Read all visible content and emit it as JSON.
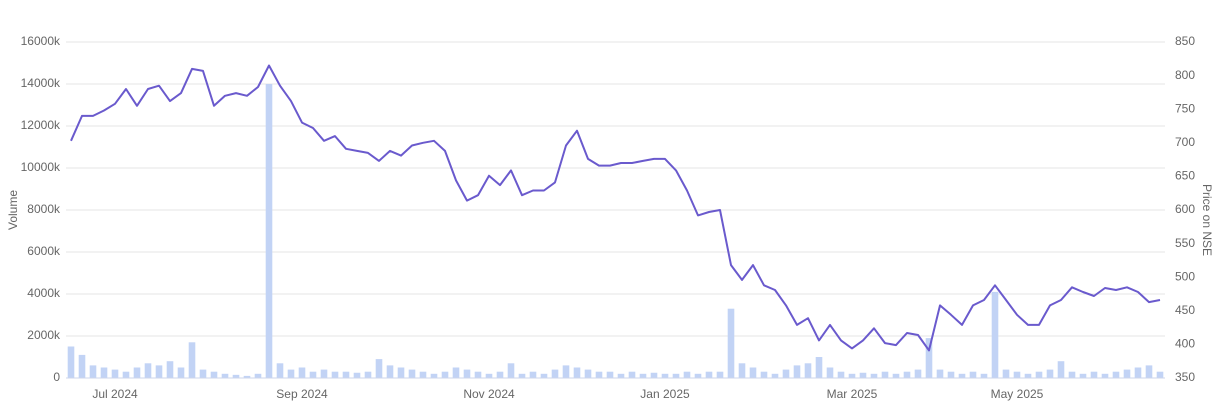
{
  "chart_data": {
    "type": "combo",
    "ylabel": "Volume",
    "y2label": "Price on NSE",
    "categories": [
      null,
      null,
      null,
      null,
      "Jul 2024",
      null,
      null,
      null,
      null,
      null,
      null,
      null,
      null,
      null,
      null,
      null,
      null,
      null,
      null,
      null,
      null,
      "Sep 2024",
      null,
      null,
      null,
      null,
      null,
      null,
      null,
      null,
      null,
      null,
      null,
      null,
      null,
      null,
      null,
      null,
      "Nov 2024",
      null,
      null,
      null,
      null,
      null,
      null,
      null,
      null,
      null,
      null,
      null,
      null,
      null,
      null,
      null,
      "Jan 2025",
      null,
      null,
      null,
      null,
      null,
      null,
      null,
      null,
      null,
      null,
      null,
      null,
      null,
      null,
      null,
      null,
      "Mar 2025",
      null,
      null,
      null,
      null,
      null,
      null,
      null,
      null,
      null,
      null,
      null,
      null,
      null,
      null,
      "May 2025",
      null,
      null,
      null,
      null,
      null,
      null,
      null,
      null,
      null,
      null,
      null,
      null,
      null
    ],
    "series": [
      {
        "type": "bar",
        "color": "#c2d3f5",
        "values": [
          1500000,
          1100000,
          600000,
          500000,
          400000,
          300000,
          500000,
          700000,
          600000,
          800000,
          500000,
          1700000,
          400000,
          300000,
          200000,
          150000,
          100000,
          200000,
          14000000,
          700000,
          400000,
          500000,
          300000,
          400000,
          300000,
          300000,
          250000,
          300000,
          900000,
          600000,
          500000,
          400000,
          300000,
          200000,
          300000,
          500000,
          400000,
          300000,
          200000,
          300000,
          700000,
          200000,
          300000,
          200000,
          400000,
          600000,
          500000,
          400000,
          300000,
          300000,
          200000,
          300000,
          200000,
          250000,
          200000,
          200000,
          300000,
          200000,
          300000,
          300000,
          3300000,
          700000,
          500000,
          300000,
          200000,
          400000,
          600000,
          700000,
          1000000,
          500000,
          300000,
          200000,
          250000,
          200000,
          300000,
          200000,
          300000,
          400000,
          1900000,
          400000,
          300000,
          200000,
          300000,
          200000,
          4100000,
          400000,
          300000,
          200000,
          300000,
          400000,
          800000,
          300000,
          200000,
          300000,
          200000,
          300000,
          400000,
          500000,
          600000,
          300000
        ]
      },
      {
        "type": "line",
        "axis": "y2",
        "color": "#6a5acd",
        "values": [
          703,
          740,
          740,
          748,
          758,
          780,
          755,
          780,
          785,
          762,
          774,
          810,
          807,
          755,
          770,
          774,
          770,
          783,
          815,
          785,
          762,
          730,
          722,
          703,
          710,
          691,
          688,
          685,
          673,
          688,
          681,
          696,
          700,
          703,
          688,
          644,
          614,
          622,
          651,
          637,
          659,
          622,
          629,
          629,
          641,
          696,
          718,
          676,
          666,
          666,
          670,
          670,
          673,
          676,
          676,
          659,
          629,
          592,
          597,
          600,
          518,
          496,
          518,
          488,
          481,
          458,
          429,
          439,
          406,
          429,
          406,
          394,
          406,
          424,
          402,
          399,
          417,
          414,
          391,
          458,
          444,
          429,
          458,
          466,
          488,
          466,
          444,
          429,
          429,
          458,
          466,
          485,
          478,
          472,
          484,
          481,
          485,
          478,
          463,
          466
        ]
      }
    ],
    "ylim": [
      0,
      16000000
    ],
    "yticks": [
      0,
      {
        "value": 2000000,
        "label": "2000k"
      },
      {
        "value": 4000000,
        "label": "4000k"
      },
      {
        "value": 6000000,
        "label": "6000k"
      },
      {
        "value": 8000000,
        "label": "8000k"
      },
      {
        "value": 10000000,
        "label": "10000k"
      },
      {
        "value": 12000000,
        "label": "12000k"
      },
      {
        "value": 14000000,
        "label": "14000k"
      },
      {
        "value": 16000000,
        "label": "16000k"
      }
    ],
    "y2lim": [
      350,
      850
    ],
    "y2ticks": [
      350,
      400,
      450,
      500,
      550,
      600,
      650,
      700,
      750,
      800,
      850
    ],
    "grid": true
  }
}
